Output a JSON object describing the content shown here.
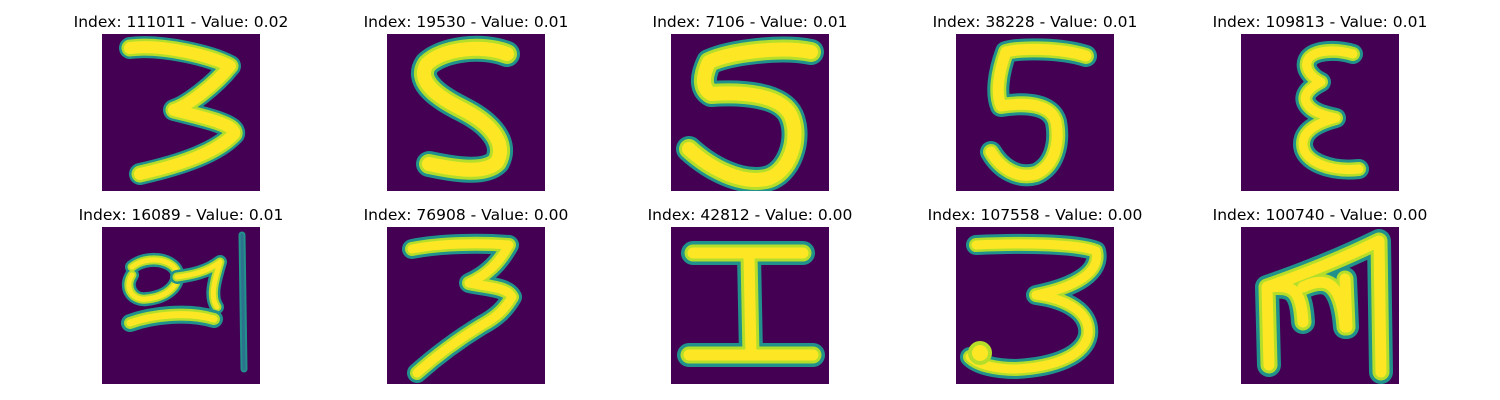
{
  "colors": {
    "background": "#440154",
    "glyph_core": "#fde725",
    "glyph_mid": "#b5de2b",
    "glyph_edge": "#21918c"
  },
  "panels": [
    {
      "title": "Index: 111011 - Value: 0.02",
      "glyph": "digit-three"
    },
    {
      "title": "Index: 19530 - Value: 0.01",
      "glyph": "digit-five"
    },
    {
      "title": "Index: 7106 - Value: 0.01",
      "glyph": "digit-five"
    },
    {
      "title": "Index: 38228 - Value: 0.01",
      "glyph": "digit-five"
    },
    {
      "title": "Index: 109813 - Value: 0.01",
      "glyph": "letter-epsilon"
    },
    {
      "title": "Index: 16089 - Value: 0.01",
      "glyph": "scribble"
    },
    {
      "title": "Index: 76908 - Value: 0.00",
      "glyph": "digit-three"
    },
    {
      "title": "Index: 42812 - Value: 0.00",
      "glyph": "letter-i"
    },
    {
      "title": "Index: 107558 - Value: 0.00",
      "glyph": "digit-three"
    },
    {
      "title": "Index: 100740 - Value: 0.00",
      "glyph": "letter-m"
    }
  ]
}
